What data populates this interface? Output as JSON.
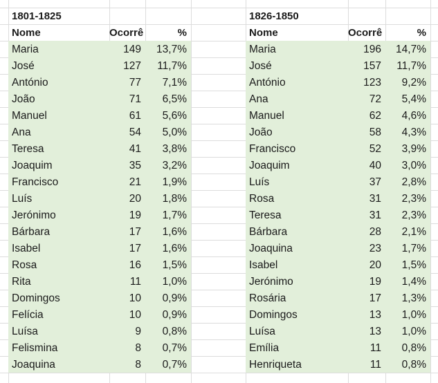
{
  "colors": {
    "fill": "#e2efda",
    "grid": "#dcdcdc",
    "text": "#1a1a1a"
  },
  "blocks": [
    {
      "period": "1801-1825",
      "headers": [
        "Nome",
        "Ocorrê",
        "%"
      ],
      "rows": [
        [
          "Maria",
          "149",
          "13,7%"
        ],
        [
          "José",
          "127",
          "11,7%"
        ],
        [
          "António",
          "77",
          "7,1%"
        ],
        [
          "João",
          "71",
          "6,5%"
        ],
        [
          "Manuel",
          "61",
          "5,6%"
        ],
        [
          "Ana",
          "54",
          "5,0%"
        ],
        [
          "Teresa",
          "41",
          "3,8%"
        ],
        [
          "Joaquim",
          "35",
          "3,2%"
        ],
        [
          "Francisco",
          "21",
          "1,9%"
        ],
        [
          "Luís",
          "20",
          "1,8%"
        ],
        [
          "Jerónimo",
          "19",
          "1,7%"
        ],
        [
          "Bárbara",
          "17",
          "1,6%"
        ],
        [
          "Isabel",
          "17",
          "1,6%"
        ],
        [
          "Rosa",
          "16",
          "1,5%"
        ],
        [
          "Rita",
          "11",
          "1,0%"
        ],
        [
          "Domingos",
          "10",
          "0,9%"
        ],
        [
          "Felícia",
          "10",
          "0,9%"
        ],
        [
          "Luísa",
          "9",
          "0,8%"
        ],
        [
          "Felismina",
          "8",
          "0,7%"
        ],
        [
          "Joaquina",
          "8",
          "0,7%"
        ]
      ]
    },
    {
      "period": "1826-1850",
      "headers": [
        "Nome",
        "Ocorrê",
        "%"
      ],
      "rows": [
        [
          "Maria",
          "196",
          "14,7%"
        ],
        [
          "José",
          "157",
          "11,7%"
        ],
        [
          "António",
          "123",
          "9,2%"
        ],
        [
          "Ana",
          "72",
          "5,4%"
        ],
        [
          "Manuel",
          "62",
          "4,6%"
        ],
        [
          "João",
          "58",
          "4,3%"
        ],
        [
          "Francisco",
          "52",
          "3,9%"
        ],
        [
          "Joaquim",
          "40",
          "3,0%"
        ],
        [
          "Luís",
          "37",
          "2,8%"
        ],
        [
          "Rosa",
          "31",
          "2,3%"
        ],
        [
          "Teresa",
          "31",
          "2,3%"
        ],
        [
          "Bárbara",
          "28",
          "2,1%"
        ],
        [
          "Joaquina",
          "23",
          "1,7%"
        ],
        [
          "Isabel",
          "20",
          "1,5%"
        ],
        [
          "Jerónimo",
          "19",
          "1,4%"
        ],
        [
          "Rosária",
          "17",
          "1,3%"
        ],
        [
          "Domingos",
          "13",
          "1,0%"
        ],
        [
          "Luísa",
          "13",
          "1,0%"
        ],
        [
          "Emília",
          "11",
          "0,8%"
        ],
        [
          "Henriqueta",
          "11",
          "0,8%"
        ]
      ]
    }
  ]
}
